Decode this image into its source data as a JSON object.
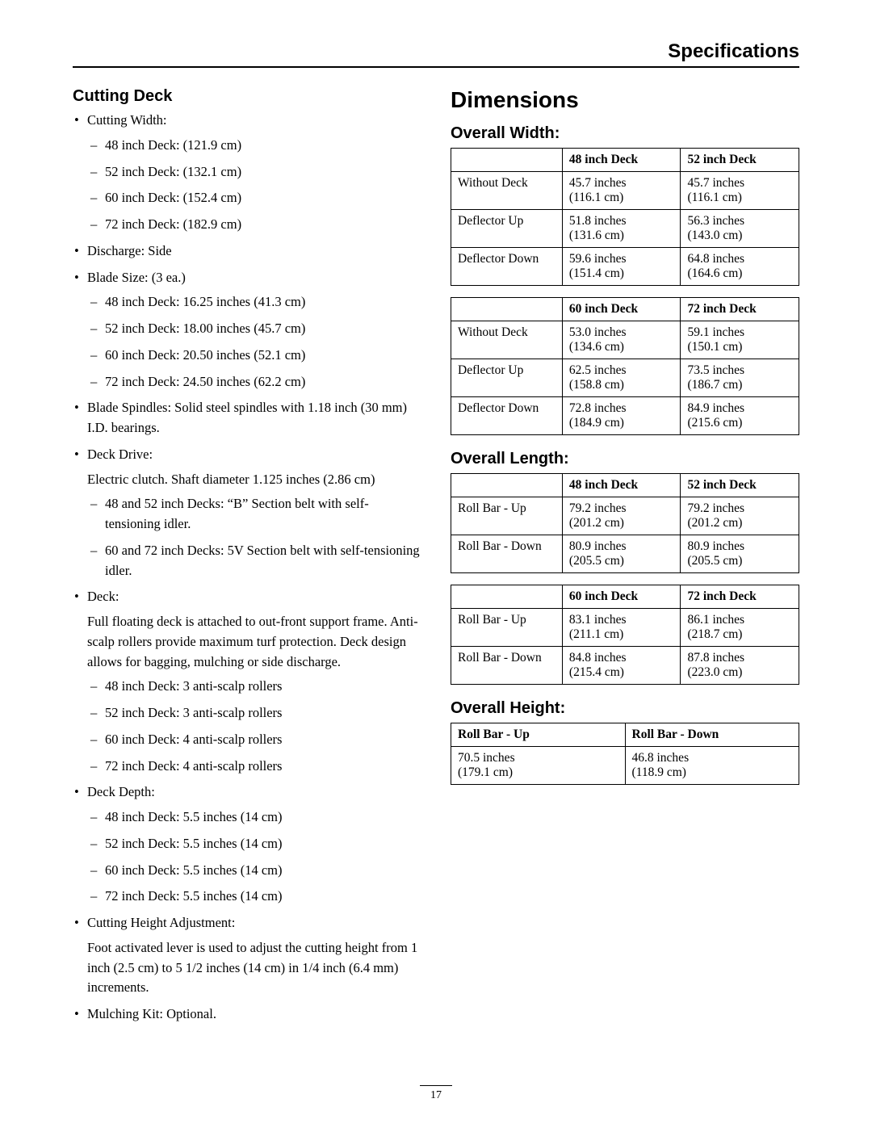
{
  "header": {
    "title": "Specifications"
  },
  "page_number": "17",
  "left": {
    "section_title": "Cutting Deck",
    "items": [
      {
        "label": "Cutting Width:",
        "sub": [
          "48 inch Deck: (121.9 cm)",
          "52 inch Deck: (132.1 cm)",
          "60 inch Deck: (152.4 cm)",
          "72 inch Deck: (182.9 cm)"
        ]
      },
      {
        "label": "Discharge: Side"
      },
      {
        "label": "Blade Size: (3 ea.)",
        "sub": [
          "48 inch Deck: 16.25 inches (41.3 cm)",
          "52 inch Deck: 18.00 inches (45.7 cm)",
          "60 inch Deck: 20.50 inches (52.1 cm)",
          "72 inch Deck: 24.50 inches (62.2 cm)"
        ]
      },
      {
        "label": "Blade Spindles: Solid steel spindles with 1.18 inch (30 mm) I.D. bearings."
      },
      {
        "label": "Deck Drive:",
        "para": "Electric clutch. Shaft diameter 1.125 inches (2.86 cm)",
        "sub": [
          "48 and 52 inch Decks: “B” Section belt with self-tensioning idler.",
          "60 and 72 inch Decks: 5V Section belt with self-tensioning idler."
        ]
      },
      {
        "label": "Deck:",
        "para": "Full floating deck is attached to out-front support frame. Anti-scalp rollers provide maximum turf protection. Deck design allows for bagging, mulching or side discharge.",
        "sub": [
          "48 inch Deck: 3 anti-scalp rollers",
          "52 inch Deck: 3 anti-scalp rollers",
          "60 inch Deck: 4 anti-scalp rollers",
          "72 inch Deck: 4 anti-scalp rollers"
        ]
      },
      {
        "label": "Deck Depth:",
        "sub": [
          "48 inch Deck: 5.5 inches (14 cm)",
          "52 inch Deck: 5.5 inches (14 cm)",
          "60 inch Deck: 5.5 inches (14 cm)",
          "72 inch Deck: 5.5 inches (14 cm)"
        ]
      },
      {
        "label": "Cutting Height Adjustment:",
        "para": "Foot activated lever is used to adjust the cutting height from 1 inch (2.5 cm) to 5 1/2 inches (14 cm) in 1/4 inch (6.4 mm) increments."
      },
      {
        "label": "Mulching Kit: Optional."
      }
    ]
  },
  "right": {
    "main_title": "Dimensions",
    "width": {
      "title": "Overall Width:",
      "table1": {
        "headers": [
          "",
          "48 inch Deck",
          "52 inch Deck"
        ],
        "rows": [
          [
            "Without Deck",
            "45.7 inches (116.1 cm)",
            "45.7 inches (116.1 cm)"
          ],
          [
            "Deflector Up",
            "51.8 inches (131.6 cm)",
            "56.3 inches (143.0 cm)"
          ],
          [
            "Deflector Down",
            "59.6 inches (151.4 cm)",
            "64.8 inches (164.6 cm)"
          ]
        ]
      },
      "table2": {
        "headers": [
          "",
          "60 inch Deck",
          "72 inch Deck"
        ],
        "rows": [
          [
            "Without Deck",
            "53.0 inches (134.6 cm)",
            "59.1 inches (150.1 cm)"
          ],
          [
            "Deflector Up",
            "62.5 inches (158.8 cm)",
            "73.5 inches (186.7 cm)"
          ],
          [
            "Deflector Down",
            "72.8 inches (184.9 cm)",
            "84.9 inches (215.6 cm)"
          ]
        ]
      }
    },
    "length": {
      "title": "Overall Length:",
      "table1": {
        "headers": [
          "",
          "48 inch Deck",
          "52 inch Deck"
        ],
        "rows": [
          [
            "Roll Bar - Up",
            "79.2 inches (201.2 cm)",
            "79.2 inches (201.2 cm)"
          ],
          [
            "Roll Bar - Down",
            "80.9 inches (205.5 cm)",
            "80.9 inches (205.5 cm)"
          ]
        ]
      },
      "table2": {
        "headers": [
          "",
          "60 inch Deck",
          "72 inch Deck"
        ],
        "rows": [
          [
            "Roll Bar - Up",
            "83.1 inches (211.1 cm)",
            "86.1 inches (218.7 cm)"
          ],
          [
            "Roll Bar - Down",
            "84.8 inches (215.4 cm)",
            "87.8 inches (223.0 cm)"
          ]
        ]
      }
    },
    "height": {
      "title": "Overall Height:",
      "table": {
        "headers": [
          "Roll Bar - Up",
          "Roll Bar - Down"
        ],
        "rows": [
          [
            "70.5 inches (179.1 cm)",
            "46.8 inches (118.9 cm)"
          ]
        ]
      }
    }
  }
}
